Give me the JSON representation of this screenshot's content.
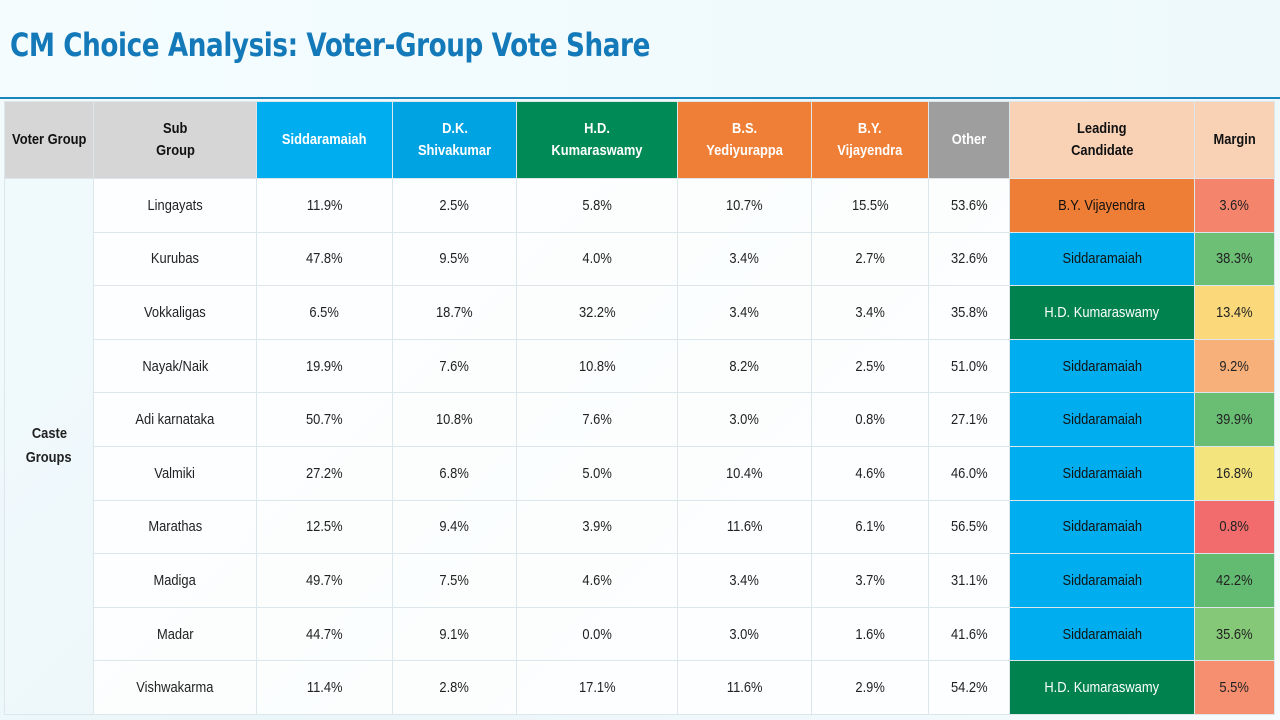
{
  "title": "CM Choice Analysis: Voter-Group Vote Share",
  "columns": {
    "voter_group": "Voter Group",
    "sub_group_1": "Sub",
    "sub_group_2": "Group",
    "siddaramaiah": "Siddaramaiah",
    "dk_1": "D.K.",
    "dk_2": "Shivakumar",
    "hdk_1": "H.D.",
    "hdk_2": "Kumaraswamy",
    "bsy_1": "B.S.",
    "bsy_2": "Yediyurappa",
    "byv_1": "B.Y.",
    "byv_2": "Vijayendra",
    "other": "Other",
    "leading_1": "Leading",
    "leading_2": "Candidate",
    "margin": "Margin"
  },
  "group": {
    "line1": "Caste",
    "line2": "Groups"
  },
  "colors": {
    "siddaramaiah": "#00aeef",
    "dk_shivakumar": "#00a3e2",
    "hd_kumaraswamy": "#008a55",
    "bs_yediyurappa": "#ef7f36",
    "by_vijayendra": "#ef7f36",
    "other": "#9e9e9e",
    "leading_header": "#f9d2b6",
    "title": "#1479b8"
  },
  "rows": [
    {
      "sub": "Lingayats",
      "sidd": "11.9%",
      "dk": "2.5%",
      "hdk": "5.8%",
      "bsy": "10.7%",
      "byv": "15.5%",
      "other": "53.6%",
      "leader": "B.Y. Vijayendra",
      "leader_key": "byv",
      "margin": "3.6%",
      "margin_color": "#f4846c"
    },
    {
      "sub": "Kurubas",
      "sidd": "47.8%",
      "dk": "9.5%",
      "hdk": "4.0%",
      "bsy": "3.4%",
      "byv": "2.7%",
      "other": "32.6%",
      "leader": "Siddaramaiah",
      "leader_key": "sidd",
      "margin": "38.3%",
      "margin_color": "#6cbf74"
    },
    {
      "sub": "Vokkaligas",
      "sidd": "6.5%",
      "dk": "18.7%",
      "hdk": "32.2%",
      "bsy": "3.4%",
      "byv": "3.4%",
      "other": "35.8%",
      "leader": "H.D. Kumaraswamy",
      "leader_key": "hdk",
      "margin": "13.4%",
      "margin_color": "#fbd87a"
    },
    {
      "sub": "Nayak/Naik",
      "sidd": "19.9%",
      "dk": "7.6%",
      "hdk": "10.8%",
      "bsy": "8.2%",
      "byv": "2.5%",
      "other": "51.0%",
      "leader": "Siddaramaiah",
      "leader_key": "sidd",
      "margin": "9.2%",
      "margin_color": "#f8b07a"
    },
    {
      "sub": "Adi karnataka",
      "sidd": "50.7%",
      "dk": "10.8%",
      "hdk": "7.6%",
      "bsy": "3.0%",
      "byv": "0.8%",
      "other": "27.1%",
      "leader": "Siddaramaiah",
      "leader_key": "sidd",
      "margin": "39.9%",
      "margin_color": "#69be73"
    },
    {
      "sub": "Valmiki",
      "sidd": "27.2%",
      "dk": "6.8%",
      "hdk": "5.0%",
      "bsy": "10.4%",
      "byv": "4.6%",
      "other": "46.0%",
      "leader": "Siddaramaiah",
      "leader_key": "sidd",
      "margin": "16.8%",
      "margin_color": "#f3e47e"
    },
    {
      "sub": "Marathas",
      "sidd": "12.5%",
      "dk": "9.4%",
      "hdk": "3.9%",
      "bsy": "11.6%",
      "byv": "6.1%",
      "other": "56.5%",
      "leader": "Siddaramaiah",
      "leader_key": "sidd",
      "margin": "0.8%",
      "margin_color": "#f26c6d"
    },
    {
      "sub": "Madiga",
      "sidd": "49.7%",
      "dk": "7.5%",
      "hdk": "4.6%",
      "bsy": "3.4%",
      "byv": "3.7%",
      "other": "31.1%",
      "leader": "Siddaramaiah",
      "leader_key": "sidd",
      "margin": "42.2%",
      "margin_color": "#63bb71"
    },
    {
      "sub": "Madar",
      "sidd": "44.7%",
      "dk": "9.1%",
      "hdk": "0.0%",
      "bsy": "3.0%",
      "byv": "1.6%",
      "other": "41.6%",
      "leader": "Siddaramaiah",
      "leader_key": "sidd",
      "margin": "35.6%",
      "margin_color": "#85c878"
    },
    {
      "sub": "Vishwakarma",
      "sidd": "11.4%",
      "dk": "2.8%",
      "hdk": "17.1%",
      "bsy": "11.6%",
      "byv": "2.9%",
      "other": "54.2%",
      "leader": "H.D. Kumaraswamy",
      "leader_key": "hdk",
      "margin": "5.5%",
      "margin_color": "#f58f70"
    }
  ]
}
